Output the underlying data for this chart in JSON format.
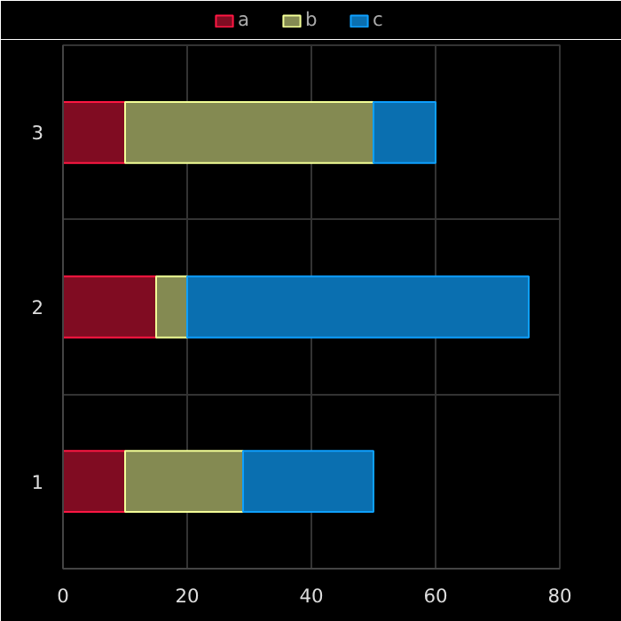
{
  "chart_data": {
    "type": "bar",
    "orientation": "horizontal",
    "stacked": true,
    "categories": [
      "3",
      "2",
      "1"
    ],
    "series": [
      {
        "name": "a",
        "color": "#800c22",
        "values": [
          10,
          15,
          10
        ]
      },
      {
        "name": "b",
        "color": "#848a52",
        "values": [
          40,
          5,
          19
        ]
      },
      {
        "name": "c",
        "color": "#0a6fb0",
        "values": [
          10,
          55,
          21
        ]
      }
    ],
    "xlim": [
      0,
      80
    ],
    "xticks": [
      0,
      20,
      40,
      60,
      80
    ],
    "grid": true,
    "legend": "top"
  }
}
